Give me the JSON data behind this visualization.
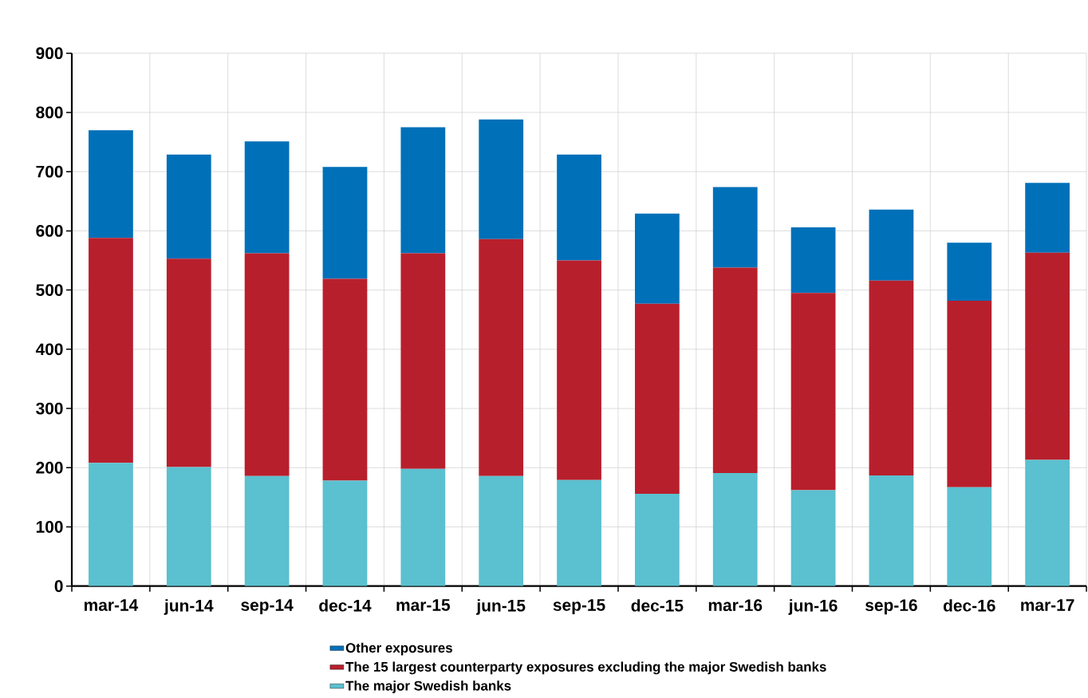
{
  "chart_data": {
    "type": "bar",
    "stacked": true,
    "categories": [
      "mar-14",
      "jun-14",
      "sep-14",
      "dec-14",
      "mar-15",
      "jun-15",
      "sep-15",
      "dec-15",
      "mar-16",
      "jun-16",
      "sep-16",
      "dec-16",
      "mar-17"
    ],
    "series": [
      {
        "name": "The major Swedish banks",
        "color": "#5bc0cf",
        "values": [
          208,
          201,
          186,
          178,
          198,
          186,
          179,
          156,
          191,
          162,
          187,
          167,
          213
        ]
      },
      {
        "name": "The 15 largest counterparty exposures excluding the major Swedish banks",
        "color": "#b81f2c",
        "values": [
          380,
          352,
          376,
          341,
          364,
          400,
          371,
          321,
          347,
          333,
          329,
          315,
          350
        ]
      },
      {
        "name": "Other exposures",
        "color": "#0070b8",
        "values": [
          182,
          176,
          189,
          189,
          213,
          202,
          179,
          152,
          136,
          111,
          120,
          98,
          118
        ]
      }
    ],
    "ylim": [
      0,
      900
    ],
    "yticks": [
      0,
      100,
      200,
      300,
      400,
      500,
      600,
      700,
      800,
      900
    ],
    "grid": true,
    "legend": "bottom"
  }
}
